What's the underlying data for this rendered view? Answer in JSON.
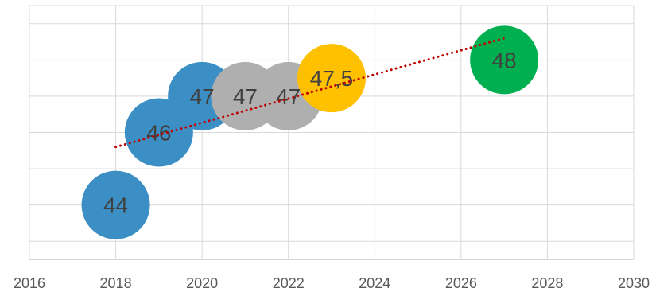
{
  "chart_data": {
    "type": "scatter",
    "subtype": "bubble",
    "title": "",
    "xlabel": "",
    "ylabel": "",
    "xlim": [
      2016,
      2030
    ],
    "ylim": [
      42.5,
      49.5
    ],
    "x_ticks": [
      "2016",
      "2018",
      "2020",
      "2022",
      "2024",
      "2026",
      "2028",
      "2030"
    ],
    "y_gridlines": [
      43,
      44,
      45,
      46,
      47,
      48,
      49
    ],
    "grid": true,
    "legend": "none",
    "points": [
      {
        "x": 2018,
        "y": 44,
        "label": "44",
        "color": "#3B8FC4"
      },
      {
        "x": 2019,
        "y": 46,
        "label": "46",
        "color": "#3B8FC4"
      },
      {
        "x": 2020,
        "y": 47,
        "label": "47",
        "color": "#3B8FC4"
      },
      {
        "x": 2021,
        "y": 47,
        "label": "47",
        "color": "#AFAFAF"
      },
      {
        "x": 2022,
        "y": 47,
        "label": "47",
        "color": "#AFAFAF"
      },
      {
        "x": 2023,
        "y": 47.5,
        "label": "47,5",
        "color": "#FFC000"
      },
      {
        "x": 2027,
        "y": 48,
        "label": "48",
        "color": "#00B050"
      }
    ],
    "trendline": {
      "type": "linear",
      "from": {
        "x": 2018,
        "y": 45.6
      },
      "to": {
        "x": 2027,
        "y": 48.6
      },
      "color": "#C00000",
      "style": "dotted"
    }
  }
}
